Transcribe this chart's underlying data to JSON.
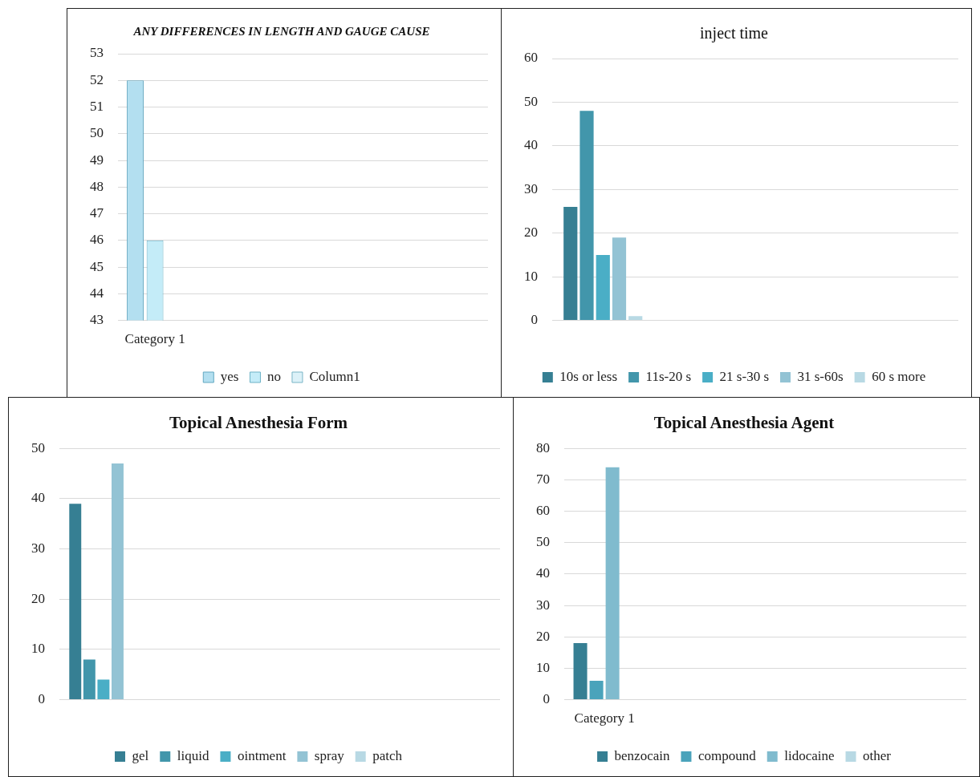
{
  "chart_data": [
    {
      "type": "bar",
      "title": "ANY DIFFERENCES IN LENGTH AND GAUGE CAUSE",
      "categories": [
        "Category 1",
        null,
        null,
        null,
        null
      ],
      "series": [
        {
          "name": "yes",
          "color": "#b3dff0",
          "values": [
            52,
            null,
            null,
            null,
            null
          ]
        },
        {
          "name": "no",
          "color": "#c4ecf8",
          "values": [
            46,
            null,
            null,
            null,
            null
          ]
        },
        {
          "name": "Column1",
          "color": "#dcf1f8",
          "values": [
            null,
            null,
            null,
            null,
            null
          ]
        }
      ],
      "ylim": [
        43,
        53
      ],
      "yticks": [
        43,
        44,
        45,
        46,
        47,
        48,
        49,
        50,
        51,
        52,
        53
      ],
      "grid": "y",
      "legend": "bottom"
    },
    {
      "type": "bar",
      "title": "inject time",
      "categories": [
        null,
        null,
        null,
        null
      ],
      "series": [
        {
          "name": "10s or less",
          "color": "#367f93",
          "values": [
            26,
            null,
            null,
            null
          ]
        },
        {
          "name": "11s-20 s",
          "color": "#4296ab",
          "values": [
            48,
            null,
            null,
            null
          ]
        },
        {
          "name": "21 s-30 s",
          "color": "#4aaec6",
          "values": [
            15,
            null,
            null,
            null
          ]
        },
        {
          "name": "31 s-60s",
          "color": "#93c3d4",
          "values": [
            19,
            null,
            null,
            null
          ]
        },
        {
          "name": "60 s more",
          "color": "#b8d9e4",
          "values": [
            1,
            null,
            null,
            null
          ]
        }
      ],
      "ylim": [
        0,
        60
      ],
      "yticks": [
        0,
        10,
        20,
        30,
        40,
        50,
        60
      ],
      "grid": "y",
      "legend": "bottom"
    },
    {
      "type": "bar",
      "title": "Topical Anesthesia Form",
      "categories": [
        null,
        null,
        null,
        null,
        null
      ],
      "series": [
        {
          "name": "gel",
          "color": "#367f93",
          "values": [
            39,
            null,
            null,
            null,
            null
          ]
        },
        {
          "name": "liquid",
          "color": "#4296ab",
          "values": [
            8,
            null,
            null,
            null,
            null
          ]
        },
        {
          "name": "ointment",
          "color": "#4aaec6",
          "values": [
            4,
            null,
            null,
            null,
            null
          ]
        },
        {
          "name": "spray",
          "color": "#93c3d4",
          "values": [
            47,
            null,
            null,
            null,
            null
          ]
        },
        {
          "name": "patch",
          "color": "#b8d9e4",
          "values": [
            null,
            null,
            null,
            null,
            null
          ]
        }
      ],
      "ylim": [
        0,
        50
      ],
      "yticks": [
        0,
        10,
        20,
        30,
        40,
        50
      ],
      "grid": "y",
      "legend": "bottom"
    },
    {
      "type": "bar",
      "title": "Topical Anesthesia Agent",
      "categories": [
        "Category 1",
        null,
        null,
        null,
        null
      ],
      "series": [
        {
          "name": "benzocain",
          "color": "#367f93",
          "values": [
            18,
            null,
            null,
            null,
            null
          ]
        },
        {
          "name": "compound",
          "color": "#4aa3bb",
          "values": [
            6,
            null,
            null,
            null,
            null
          ]
        },
        {
          "name": "lidocaine",
          "color": "#80bbce",
          "values": [
            74,
            null,
            null,
            null,
            null
          ]
        },
        {
          "name": "other",
          "color": "#b8d9e4",
          "values": [
            null,
            null,
            null,
            null,
            null
          ]
        }
      ],
      "ylim": [
        0,
        80
      ],
      "yticks": [
        0,
        10,
        20,
        30,
        40,
        50,
        60,
        70,
        80
      ],
      "grid": "y",
      "legend": "bottom"
    }
  ]
}
